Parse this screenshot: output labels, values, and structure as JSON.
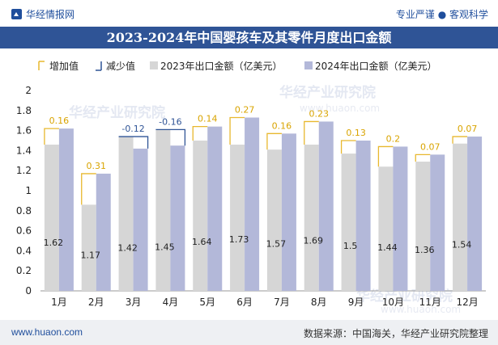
{
  "header": {
    "brand": "华经情报网",
    "slogan": "专业严谨 ● 客观科学"
  },
  "footer": {
    "website": "www.huaon.com",
    "source": "数据来源：中国海关，华经产业研究院整理"
  },
  "watermarks": [
    "华经产业研究院",
    "www.huaon.com"
  ],
  "colors": {
    "title_bg": "#2f5496",
    "bar_2023": "#d6d6d6",
    "bar_2024": "#b3b8d9",
    "increase": "#e8b82e",
    "decrease": "#2f5496"
  },
  "chart_data": {
    "type": "bar",
    "title": "2023-2024年中国婴孩车及其零件月度出口金额",
    "xlabel": "",
    "ylabel": "",
    "ylim": [
      0,
      2
    ],
    "yticks": [
      "0",
      "0.2",
      "0.4",
      "0.6",
      "0.8",
      "1",
      "1.2",
      "1.4",
      "1.6",
      "1.8",
      "2"
    ],
    "legend": [
      "增加值",
      "减少值",
      "2023年出口金额（亿美元）",
      "2024年出口金额（亿美元）"
    ],
    "legend_position": "top-left",
    "categories": [
      "1月",
      "2月",
      "3月",
      "4月",
      "5月",
      "6月",
      "7月",
      "8月",
      "9月",
      "10月",
      "11月",
      "12月"
    ],
    "series": [
      {
        "name": "2023年出口金额（亿美元）",
        "values": [
          1.46,
          0.86,
          1.54,
          1.61,
          1.5,
          1.46,
          1.41,
          1.46,
          1.37,
          1.24,
          1.29,
          1.47
        ]
      },
      {
        "name": "2024年出口金额（亿美元）",
        "values": [
          1.62,
          1.17,
          1.42,
          1.45,
          1.64,
          1.73,
          1.57,
          1.69,
          1.5,
          1.44,
          1.36,
          1.54
        ]
      }
    ],
    "changes": [
      0.16,
      0.31,
      -0.12,
      -0.16,
      0.14,
      0.27,
      0.16,
      0.23,
      0.13,
      0.2,
      0.07,
      0.07
    ],
    "change_labels": [
      "0.16",
      "0.31",
      "-0.12",
      "-0.16",
      "0.14",
      "0.27",
      "0.16",
      "0.23",
      "0.13",
      "0.2",
      "0.07",
      "0.07"
    ],
    "value_labels_2024": [
      "1.62",
      "1.17",
      "1.42",
      "1.45",
      "1.64",
      "1.73",
      "1.57",
      "1.69",
      "1.5",
      "1.44",
      "1.36",
      "1.54"
    ]
  }
}
